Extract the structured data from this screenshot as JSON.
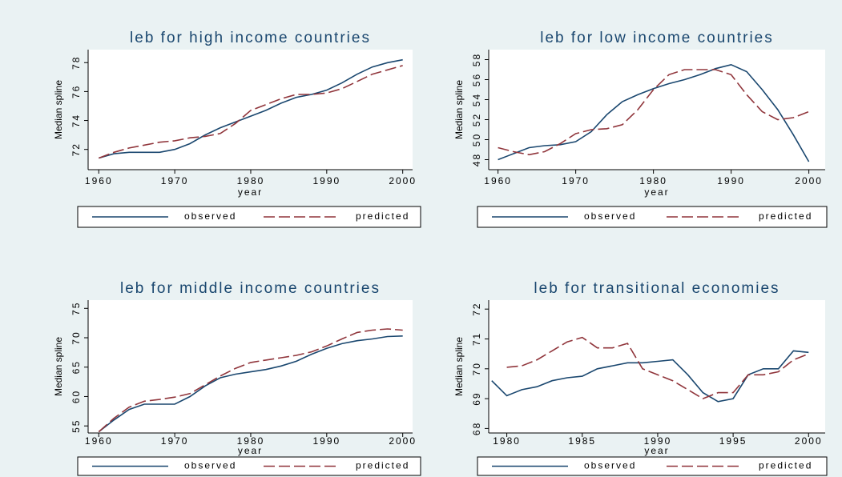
{
  "chart_data": [
    {
      "type": "line",
      "title": "leb for high income countries",
      "xlabel": "year",
      "ylabel": "Median spline",
      "legend": "bottom",
      "x": [
        1960,
        1962,
        1964,
        1966,
        1968,
        1970,
        1972,
        1974,
        1976,
        1978,
        1980,
        1982,
        1984,
        1986,
        1988,
        1990,
        1992,
        1994,
        1996,
        1998,
        2000
      ],
      "series": [
        {
          "name": "observed",
          "color": "#1a476f",
          "dashed": false,
          "values": [
            71.4,
            71.7,
            71.8,
            71.8,
            71.8,
            72.0,
            72.4,
            73.0,
            73.5,
            73.9,
            74.3,
            74.7,
            75.2,
            75.6,
            75.8,
            76.1,
            76.6,
            77.2,
            77.7,
            78.0,
            78.2
          ]
        },
        {
          "name": "predicted",
          "color": "#90353b",
          "dashed": true,
          "values": [
            71.4,
            71.8,
            72.1,
            72.3,
            72.5,
            72.6,
            72.8,
            72.9,
            73.1,
            73.8,
            74.7,
            75.1,
            75.5,
            75.8,
            75.8,
            75.9,
            76.2,
            76.7,
            77.2,
            77.5,
            77.8
          ]
        }
      ],
      "xlim": [
        1958.6,
        2001.3
      ],
      "xticks": [
        1960,
        1970,
        1980,
        1990,
        2000
      ],
      "ylim": [
        70.6,
        78.9
      ],
      "yticks": [
        72,
        74,
        76,
        78
      ]
    },
    {
      "type": "line",
      "title": "leb for low income countries",
      "xlabel": "year",
      "ylabel": "Median spline",
      "legend": "bottom",
      "x": [
        1960,
        1962,
        1964,
        1966,
        1968,
        1970,
        1972,
        1974,
        1976,
        1978,
        1980,
        1982,
        1984,
        1986,
        1988,
        1990,
        1992,
        1994,
        1996,
        1998,
        2000
      ],
      "series": [
        {
          "name": "observed",
          "color": "#1a476f",
          "dashed": false,
          "values": [
            48.0,
            48.6,
            49.2,
            49.4,
            49.5,
            49.8,
            50.8,
            52.5,
            53.8,
            54.5,
            55.1,
            55.6,
            56.0,
            56.5,
            57.1,
            57.5,
            56.8,
            55.0,
            53.0,
            50.5,
            47.8
          ]
        },
        {
          "name": "predicted",
          "color": "#90353b",
          "dashed": true,
          "values": [
            49.2,
            48.8,
            48.5,
            48.8,
            49.6,
            50.6,
            51.0,
            51.1,
            51.5,
            53.0,
            55.0,
            56.5,
            57.0,
            57.0,
            57.0,
            56.5,
            54.5,
            52.8,
            52.0,
            52.2,
            52.8
          ]
        }
      ],
      "xlim": [
        1958.8,
        2002.1
      ],
      "xticks": [
        1960,
        1970,
        1980,
        1990,
        2000
      ],
      "ylim": [
        47,
        59
      ],
      "yticks": [
        48,
        50,
        52,
        54,
        56,
        58
      ]
    },
    {
      "type": "line",
      "title": "leb for middle income countries",
      "xlabel": "year",
      "ylabel": "Median spline",
      "legend": "bottom",
      "x": [
        1960,
        1962,
        1964,
        1966,
        1968,
        1970,
        1972,
        1974,
        1976,
        1978,
        1980,
        1982,
        1984,
        1986,
        1988,
        1990,
        1992,
        1994,
        1996,
        1998,
        2000
      ],
      "series": [
        {
          "name": "observed",
          "color": "#1a476f",
          "dashed": false,
          "values": [
            54.0,
            56.0,
            57.8,
            58.7,
            58.7,
            58.7,
            60.0,
            61.8,
            63.2,
            63.8,
            64.2,
            64.6,
            65.2,
            66.0,
            67.2,
            68.2,
            69.0,
            69.5,
            69.8,
            70.2,
            70.3
          ]
        },
        {
          "name": "predicted",
          "color": "#90353b",
          "dashed": true,
          "values": [
            54.0,
            56.3,
            58.2,
            59.2,
            59.5,
            59.9,
            60.5,
            62.0,
            63.5,
            64.8,
            65.8,
            66.2,
            66.6,
            67.0,
            67.6,
            68.6,
            69.8,
            70.9,
            71.3,
            71.5,
            71.3
          ]
        }
      ],
      "xlim": [
        1958.6,
        2001.3
      ],
      "xticks": [
        1960,
        1970,
        1980,
        1990,
        2000
      ],
      "ylim": [
        53.8,
        76.4
      ],
      "yticks": [
        55,
        60,
        65,
        70,
        75
      ]
    },
    {
      "type": "line",
      "title": "leb for transitional economies",
      "xlabel": "year",
      "ylabel": "Median spline",
      "legend": "bottom",
      "x": [
        1979,
        1980,
        1981,
        1982,
        1983,
        1984,
        1985,
        1986,
        1987,
        1988,
        1989,
        1990,
        1991,
        1992,
        1993,
        1994,
        1995,
        1996,
        1997,
        1998,
        1999,
        2000
      ],
      "series": [
        {
          "name": "observed",
          "color": "#1a476f",
          "dashed": false,
          "values": [
            69.6,
            69.1,
            69.3,
            69.4,
            69.6,
            69.7,
            69.75,
            70.0,
            70.1,
            70.2,
            70.2,
            70.25,
            70.3,
            69.8,
            69.2,
            68.9,
            69.0,
            69.8,
            70.0,
            70.0,
            70.6,
            70.55
          ]
        },
        {
          "name": "predicted",
          "color": "#90353b",
          "dashed": true,
          "values": [
            null,
            70.05,
            70.1,
            70.3,
            70.6,
            70.9,
            71.05,
            70.7,
            70.7,
            70.85,
            70.0,
            69.8,
            69.6,
            69.3,
            69.0,
            69.2,
            69.2,
            69.8,
            69.8,
            69.9,
            70.3,
            70.5
          ]
        }
      ],
      "xlim": [
        1978.8,
        2001.1
      ],
      "xticks": [
        1980,
        1985,
        1990,
        1995,
        2000
      ],
      "ylim": [
        67.85,
        72.3
      ],
      "yticks": [
        68,
        69,
        70,
        71,
        72
      ]
    }
  ]
}
